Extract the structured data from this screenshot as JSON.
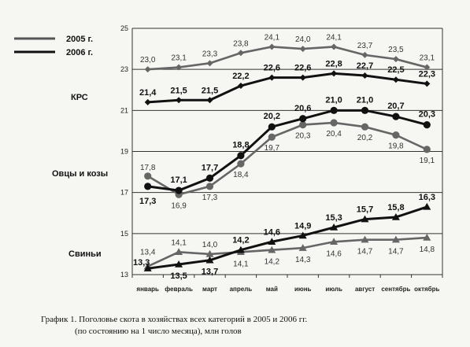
{
  "caption": {
    "line1": "График 1. Поголовье скота в хозяйствах всех категорий в 2005 и 2006 гг.",
    "line2": "(по состоянию на 1 число месяца), млн голов"
  },
  "legend": [
    {
      "label": "2005 г.",
      "color": "#555555"
    },
    {
      "label": "2006 г.",
      "color": "#111111"
    }
  ],
  "colors": {
    "s2005": "#666666",
    "s2006": "#111111",
    "grid": "#333333"
  },
  "chart_data": {
    "type": "line",
    "categories": [
      "январь",
      "февраль",
      "март",
      "апрель",
      "май",
      "июнь",
      "июль",
      "август",
      "сентябрь",
      "октябрь"
    ],
    "ylim": [
      13,
      25
    ],
    "yticks": [
      13,
      15,
      17,
      19,
      21,
      23,
      25
    ],
    "grid": "horizontal",
    "groups": [
      {
        "name": "КРС",
        "marker": "diamond",
        "series": [
          {
            "name": "2005 г.",
            "values": [
              23.0,
              23.1,
              23.3,
              23.8,
              24.1,
              24.0,
              24.1,
              23.7,
              23.5,
              23.1
            ]
          },
          {
            "name": "2006 г.",
            "values": [
              21.4,
              21.5,
              21.5,
              22.2,
              22.6,
              22.6,
              22.8,
              22.7,
              22.5,
              22.3
            ]
          }
        ]
      },
      {
        "name": "Овцы и козы",
        "marker": "circle",
        "series": [
          {
            "name": "2005 г.",
            "values": [
              17.8,
              16.9,
              17.3,
              18.4,
              19.7,
              20.3,
              20.4,
              20.2,
              19.8,
              19.1
            ]
          },
          {
            "name": "2006 г.",
            "values": [
              17.3,
              17.1,
              17.7,
              18.8,
              20.2,
              20.6,
              21.0,
              21.0,
              20.7,
              20.3
            ]
          }
        ]
      },
      {
        "name": "Свиньи",
        "marker": "triangle",
        "series": [
          {
            "name": "2005 г.",
            "values": [
              13.4,
              14.1,
              14.0,
              14.1,
              14.2,
              14.3,
              14.6,
              14.7,
              14.7,
              14.8
            ]
          },
          {
            "name": "2006 г.",
            "values": [
              13.3,
              13.5,
              13.7,
              14.2,
              14.6,
              14.9,
              15.3,
              15.7,
              15.8,
              16.3
            ]
          }
        ]
      }
    ]
  }
}
